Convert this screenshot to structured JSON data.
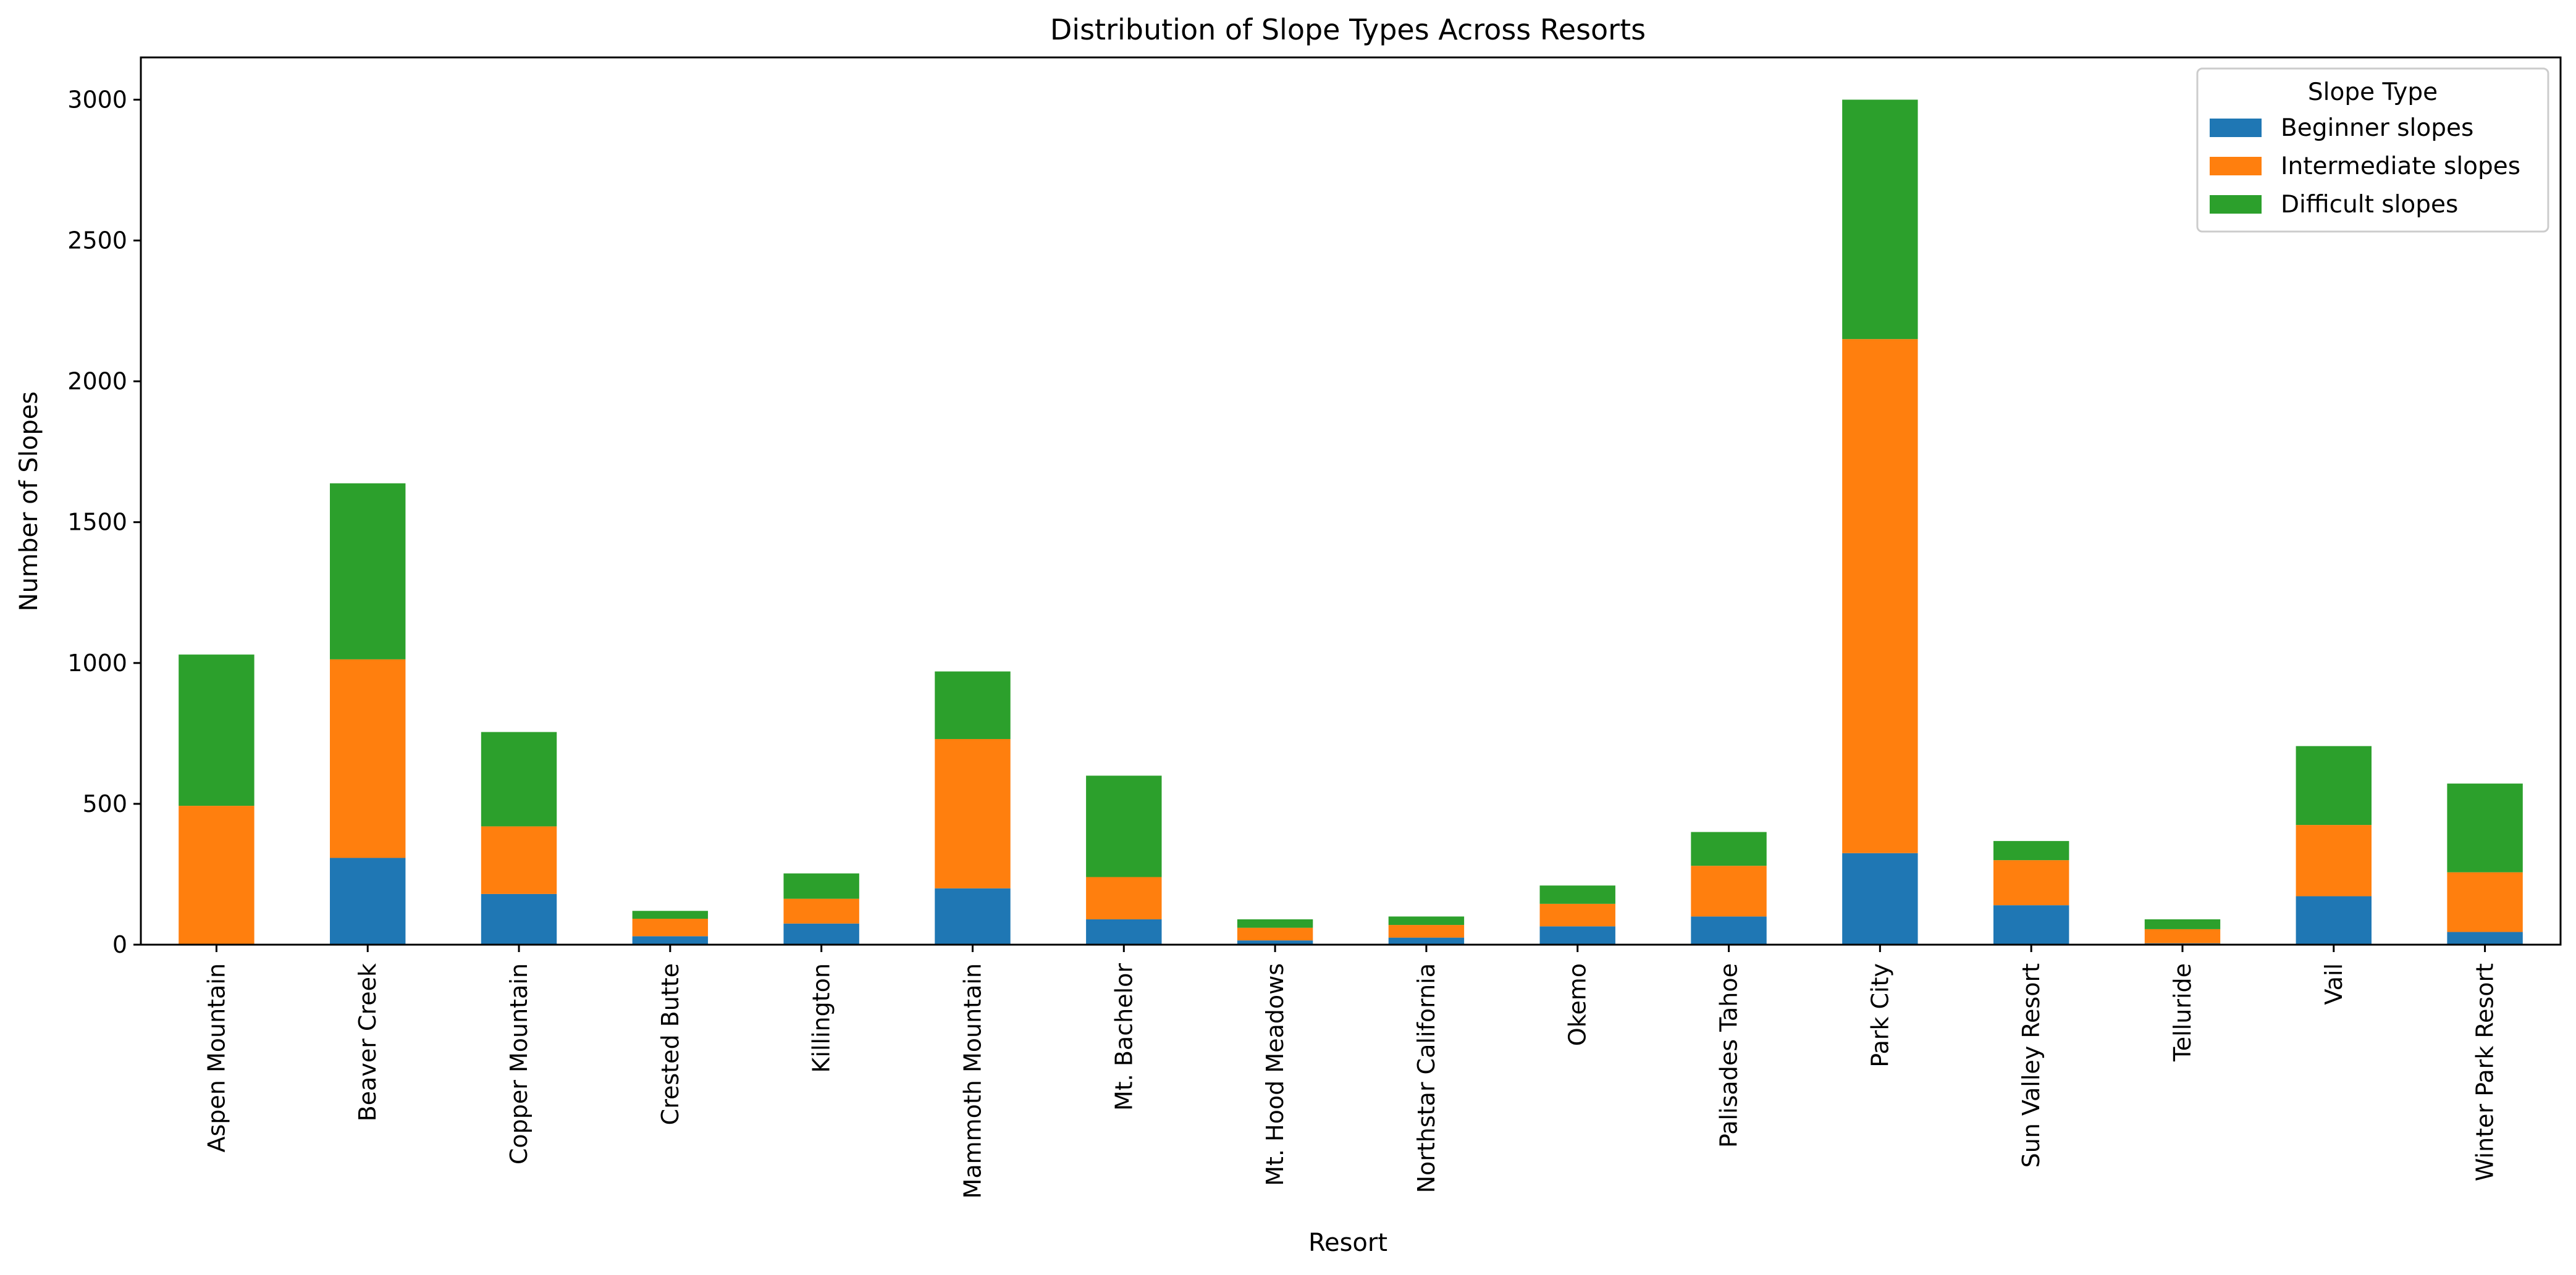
{
  "chart_data": {
    "type": "bar",
    "stacked": true,
    "title": "Distribution of Slope Types Across Resorts",
    "xlabel": "Resort",
    "ylabel": "Number of Slopes",
    "ylim": [
      0,
      3150
    ],
    "yticks": [
      0,
      500,
      1000,
      1500,
      2000,
      2500,
      3000
    ],
    "grid": false,
    "legend": {
      "title": "Slope Type",
      "placement": "top-right"
    },
    "categories": [
      "Aspen Mountain",
      "Beaver Creek",
      "Copper Mountain",
      "Crested Butte",
      "Killington",
      "Mammoth Mountain",
      "Mt. Bachelor",
      "Mt. Hood Meadows",
      "Northstar California",
      "Okemo",
      "Palisades Tahoe",
      "Park City",
      "Sun Valley Resort",
      "Telluride",
      "Vail",
      "Winter Park Resort"
    ],
    "series": [
      {
        "name": "Beginner slopes",
        "color": "#1f77b4",
        "values": [
          0,
          308,
          180,
          30,
          75,
          200,
          90,
          15,
          25,
          65,
          100,
          325,
          140,
          5,
          172,
          45
        ]
      },
      {
        "name": "Intermediate slopes",
        "color": "#ff7f0e",
        "values": [
          493,
          705,
          240,
          62,
          88,
          530,
          150,
          45,
          45,
          80,
          180,
          1825,
          160,
          50,
          253,
          212
        ]
      },
      {
        "name": "Difficult slopes",
        "color": "#2ca02c",
        "values": [
          537,
          625,
          335,
          28,
          90,
          240,
          360,
          30,
          30,
          65,
          120,
          850,
          68,
          35,
          280,
          315
        ]
      }
    ]
  }
}
